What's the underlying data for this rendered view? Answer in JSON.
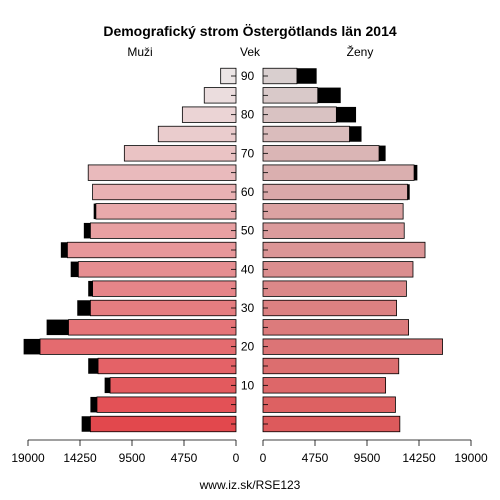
{
  "chart_data": {
    "type": "bar",
    "orientation": "horizontal",
    "chart_kind": "population-pyramid",
    "title": "Demografický strom Östergötlands län 2014",
    "left_label": "Muži",
    "center_label": "Vek",
    "right_label": "Ženy",
    "footer": "www.iz.sk/RSE123",
    "x_ticks": [
      19000,
      14250,
      9500,
      4750,
      0
    ],
    "x_tick_labels": [
      "19000",
      "14250",
      "9500",
      "4750",
      "0"
    ],
    "xlim": [
      0,
      19000
    ],
    "age_ticks": [
      "10",
      "20",
      "30",
      "40",
      "50",
      "60",
      "70",
      "80",
      "90"
    ],
    "age_groups": [
      "0",
      "5",
      "10",
      "15",
      "20",
      "25",
      "30",
      "35",
      "40",
      "45",
      "50",
      "55",
      "60",
      "65",
      "70",
      "75",
      "80",
      "85",
      "90"
    ],
    "series": [
      {
        "name": "Muži",
        "values": [
          13300,
          12700,
          11500,
          12600,
          17900,
          15300,
          13300,
          13100,
          14400,
          15400,
          13300,
          12800,
          13100,
          13500,
          10200,
          7100,
          4900,
          2900,
          1400
        ],
        "excess": [
          800,
          600,
          500,
          900,
          1500,
          2000,
          1200,
          400,
          700,
          600,
          600,
          200,
          0,
          0,
          0,
          0,
          0,
          0,
          0
        ]
      },
      {
        "name": "Ženy",
        "values": [
          12500,
          12100,
          11200,
          12400,
          16400,
          13300,
          12200,
          13100,
          13700,
          14800,
          12900,
          12800,
          13200,
          13800,
          10600,
          7900,
          6700,
          5000,
          3100
        ],
        "excess": [
          0,
          0,
          0,
          0,
          0,
          0,
          0,
          0,
          0,
          0,
          0,
          0,
          200,
          300,
          600,
          1100,
          1800,
          2100,
          1800
        ]
      }
    ],
    "colors": {
      "excess": "#000000",
      "male_young": "#e2484d",
      "male_old": "#ece6e6",
      "female_young": "#dd5a5c",
      "female_old": "#d9cfcf"
    }
  }
}
